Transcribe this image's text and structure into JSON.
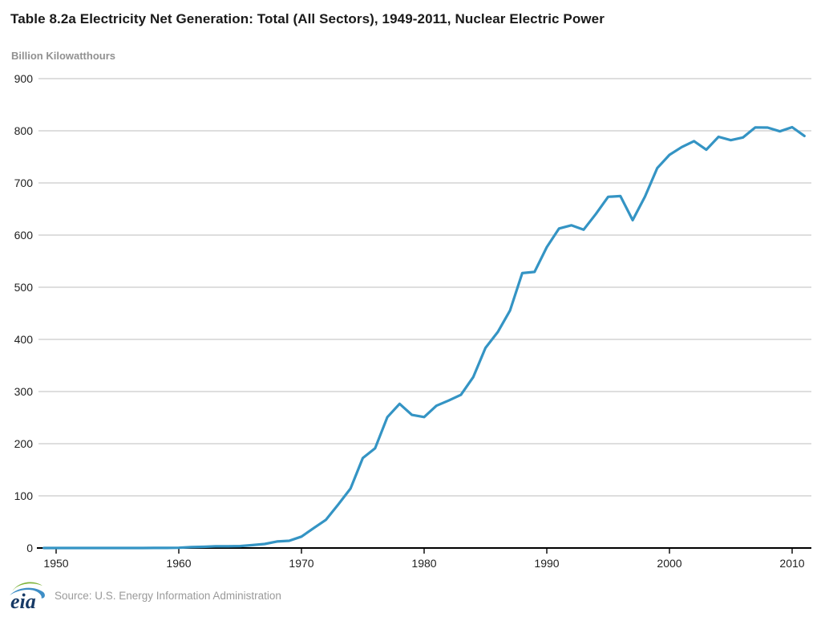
{
  "title": "Table 8.2a Electricity Net Generation: Total (All Sectors), 1949-2011, Nuclear Electric Power",
  "chart_data": {
    "type": "line",
    "title": "Table 8.2a Electricity Net Generation: Total (All Sectors), 1949-2011, Nuclear Electric Power",
    "series_name": "Nuclear Electric Power",
    "ylabel": "Billion Kilowatthours",
    "xlabel": "",
    "ylim": [
      0,
      900
    ],
    "ytick_interval": 100,
    "xlim": [
      1949,
      2011
    ],
    "xticks": [
      1950,
      1960,
      1970,
      1980,
      1990,
      2000,
      2010
    ],
    "grid": "horizontal",
    "legend": "none",
    "x": [
      1949,
      1950,
      1951,
      1952,
      1953,
      1954,
      1955,
      1956,
      1957,
      1958,
      1959,
      1960,
      1961,
      1962,
      1963,
      1964,
      1965,
      1966,
      1967,
      1968,
      1969,
      1970,
      1971,
      1972,
      1973,
      1974,
      1975,
      1976,
      1977,
      1978,
      1979,
      1980,
      1981,
      1982,
      1983,
      1984,
      1985,
      1986,
      1987,
      1988,
      1989,
      1990,
      1991,
      1992,
      1993,
      1994,
      1995,
      1996,
      1997,
      1998,
      1999,
      2000,
      2001,
      2002,
      2003,
      2004,
      2005,
      2006,
      2007,
      2008,
      2009,
      2010,
      2011
    ],
    "values": [
      0,
      0,
      0,
      0,
      0,
      0,
      0,
      0,
      0.01,
      0.2,
      0.2,
      0.5,
      1.7,
      2.3,
      3.2,
      3.3,
      3.7,
      5.5,
      7.7,
      12.5,
      13.9,
      21.8,
      38.1,
      54.1,
      83.5,
      114.0,
      172.5,
      191.1,
      250.9,
      276.4,
      255.2,
      251.1,
      272.7,
      282.8,
      293.7,
      327.6,
      383.7,
      414.0,
      455.3,
      527.0,
      529.4,
      576.9,
      612.6,
      618.8,
      610.3,
      640.4,
      673.4,
      674.7,
      628.6,
      673.7,
      728.3,
      753.9,
      768.8,
      780.1,
      763.7,
      788.5,
      782.0,
      787.2,
      806.4,
      806.2,
      798.9,
      807.0,
      790.2
    ]
  },
  "footer": {
    "logo_text": "eia",
    "source": "Source: U.S. Energy Information Administration"
  },
  "colors": {
    "line": "#3494c4",
    "grid": "#c9c9c9",
    "axis": "#000000",
    "tick_label": "#1f1f1f",
    "y_unit_label": "#919191",
    "source_text": "#9a9a9a",
    "logo_navy": "#173a66",
    "logo_green": "#7fb43c",
    "logo_blue": "#3e8ec6"
  }
}
